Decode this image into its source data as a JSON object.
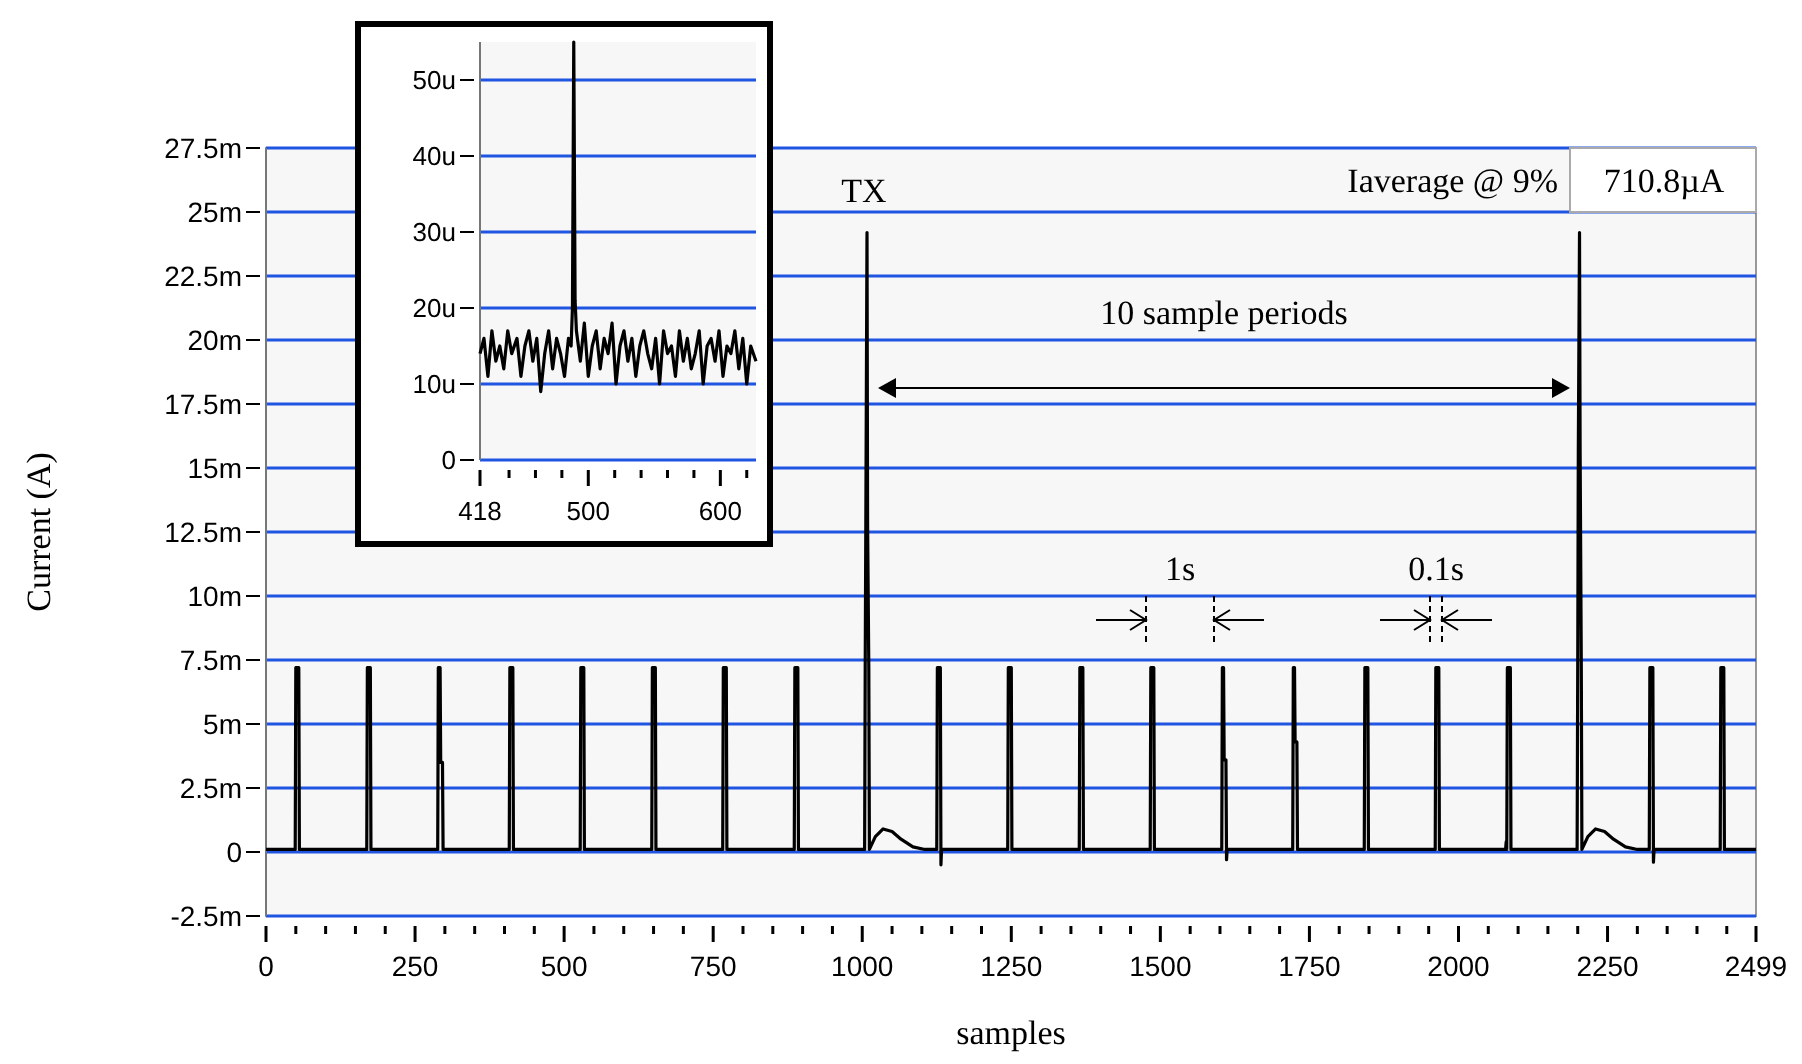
{
  "chart_data": [
    {
      "type": "line",
      "xlabel": "samples",
      "ylabel": "Current (A)",
      "xlim": [
        0,
        2499
      ],
      "ylim": [
        -2.5,
        27.5
      ],
      "xticks": [
        0,
        {
          "value": 50,
          "label": null
        },
        {
          "value": 100,
          "label": null
        },
        {
          "value": 150,
          "label": null
        },
        {
          "value": 200,
          "label": null
        },
        250,
        {
          "value": 300,
          "label": null
        },
        {
          "value": 350,
          "label": null
        },
        {
          "value": 400,
          "label": null
        },
        {
          "value": 450,
          "label": null
        },
        500,
        {
          "value": 550,
          "label": null
        },
        {
          "value": 600,
          "label": null
        },
        {
          "value": 650,
          "label": null
        },
        {
          "value": 700,
          "label": null
        },
        750,
        {
          "value": 800,
          "label": null
        },
        {
          "value": 850,
          "label": null
        },
        {
          "value": 900,
          "label": null
        },
        {
          "value": 950,
          "label": null
        },
        1000,
        {
          "value": 1050,
          "label": null
        },
        {
          "value": 1100,
          "label": null
        },
        {
          "value": 1150,
          "label": null
        },
        {
          "value": 1200,
          "label": null
        },
        1250,
        {
          "value": 1300,
          "label": null
        },
        {
          "value": 1350,
          "label": null
        },
        {
          "value": 1400,
          "label": null
        },
        {
          "value": 1450,
          "label": null
        },
        1500,
        {
          "value": 1550,
          "label": null
        },
        {
          "value": 1600,
          "label": null
        },
        {
          "value": 1650,
          "label": null
        },
        {
          "value": 1700,
          "label": null
        },
        1750,
        {
          "value": 1800,
          "label": null
        },
        {
          "value": 1850,
          "label": null
        },
        {
          "value": 1900,
          "label": null
        },
        {
          "value": 1950,
          "label": null
        },
        2000,
        {
          "value": 2050,
          "label": null
        },
        {
          "value": 2100,
          "label": null
        },
        {
          "value": 2150,
          "label": null
        },
        {
          "value": 2200,
          "label": null
        },
        2250,
        {
          "value": 2300,
          "label": null
        },
        {
          "value": 2350,
          "label": null
        },
        {
          "value": 2400,
          "label": null
        },
        {
          "value": 2450,
          "label": null
        },
        2499
      ],
      "yticks": [
        {
          "value": -2.5,
          "label": "-2.5m"
        },
        0,
        {
          "value": 2.5,
          "label": "2.5m"
        },
        {
          "value": 5,
          "label": "5m"
        },
        {
          "value": 7.5,
          "label": "7.5m"
        },
        {
          "value": 10,
          "label": "10m"
        },
        {
          "value": 12.5,
          "label": "12.5m"
        },
        {
          "value": 15,
          "label": "15m"
        },
        {
          "value": 17.5,
          "label": "17.5m"
        },
        {
          "value": 20,
          "label": "20m"
        },
        {
          "value": 22.5,
          "label": "22.5m"
        },
        {
          "value": 25,
          "label": "25m"
        },
        {
          "value": 27.5,
          "label": "27.5m"
        }
      ],
      "grid": "y",
      "marker": "none",
      "line_style": "solid",
      "series": [
        {
          "color": "#000000",
          "x": [
            0,
            49,
            50,
            55,
            56,
            169,
            170,
            175,
            176,
            288,
            289,
            292,
            293,
            296,
            297,
            408,
            409,
            414,
            415,
            527,
            528,
            533,
            534,
            647,
            648,
            653,
            654,
            766,
            767,
            772,
            773,
            886,
            887,
            892,
            893,
            1004,
            1005,
            1006,
            1008,
            1009,
            1011,
            1012,
            1022,
            1035,
            1050,
            1065,
            1085,
            1105,
            1125,
            1126,
            1131,
            1132,
            1133,
            1244,
            1245,
            1250,
            1251,
            1364,
            1365,
            1370,
            1371,
            1483,
            1484,
            1489,
            1490,
            1603,
            1604,
            1606,
            1607,
            1610,
            1611,
            1612,
            1722,
            1723,
            1725,
            1726,
            1729,
            1730,
            1842,
            1843,
            1848,
            1849,
            1961,
            1962,
            1967,
            1968,
            2079,
            2080,
            2081,
            2082,
            2087,
            2088,
            2199,
            2200,
            2201,
            2203,
            2204,
            2206,
            2207,
            2217,
            2230,
            2245,
            2260,
            2280,
            2300,
            2320,
            2321,
            2326,
            2327,
            2328,
            2439,
            2440,
            2445,
            2446,
            2499
          ],
          "values": [
            0.1,
            0.1,
            7.2,
            7.2,
            0.1,
            0.1,
            7.2,
            7.2,
            0.1,
            0.1,
            7.2,
            7.2,
            3.5,
            3.5,
            0.1,
            0.1,
            7.2,
            7.2,
            0.1,
            0.1,
            7.2,
            7.2,
            0.1,
            0.1,
            7.2,
            7.2,
            0.1,
            0.1,
            7.2,
            7.2,
            0.1,
            0.1,
            7.2,
            7.2,
            0.1,
            0.1,
            7.2,
            12.8,
            24.2,
            12.8,
            7.2,
            0.1,
            0.6,
            0.9,
            0.8,
            0.5,
            0.2,
            0.1,
            0.1,
            7.2,
            7.2,
            -0.5,
            0.1,
            0.1,
            7.2,
            7.2,
            0.1,
            0.1,
            7.2,
            7.2,
            0.1,
            0.1,
            7.2,
            7.2,
            0.1,
            0.1,
            7.2,
            7.2,
            3.6,
            3.6,
            -0.3,
            0.1,
            0.1,
            7.2,
            7.2,
            4.3,
            4.3,
            0.1,
            0.1,
            7.2,
            7.2,
            0.1,
            0.1,
            7.2,
            7.2,
            0.1,
            0.1,
            0.4,
            0.1,
            7.2,
            7.2,
            0.1,
            0.1,
            7.2,
            15.7,
            24.2,
            15.7,
            7.2,
            0.1,
            0.6,
            0.9,
            0.8,
            0.5,
            0.2,
            0.1,
            0.1,
            7.2,
            7.2,
            -0.4,
            0.1,
            0.1,
            7.2,
            7.2,
            0.1,
            0.1
          ]
        }
      ],
      "annotations": [
        "TX",
        "10 sample periods",
        "1s",
        "0.1s",
        "Iaverage @ 9%",
        "710.8µA"
      ]
    },
    {
      "type": "line",
      "xlim": [
        418,
        627
      ],
      "ylim": [
        0,
        55
      ],
      "xticks": [
        418,
        {
          "value": 440,
          "label": null
        },
        {
          "value": 460,
          "label": null
        },
        {
          "value": 480,
          "label": null
        },
        500,
        {
          "value": 520,
          "label": null
        },
        {
          "value": 540,
          "label": null
        },
        {
          "value": 560,
          "label": null
        },
        {
          "value": 580,
          "label": null
        },
        600,
        {
          "value": 620,
          "label": null
        }
      ],
      "yticks": [
        0,
        {
          "value": 10,
          "label": "10u"
        },
        {
          "value": 20,
          "label": "20u"
        },
        {
          "value": 30,
          "label": "30u"
        },
        {
          "value": 40,
          "label": "40u"
        },
        {
          "value": 50,
          "label": "50u"
        }
      ],
      "grid": "y",
      "marker": "none",
      "line_style": "solid",
      "series": [
        {
          "color": "#000000",
          "x": [
            418,
            421,
            424,
            427,
            430,
            433,
            436,
            439,
            442,
            446,
            449,
            452,
            455,
            458,
            461,
            464,
            467,
            470,
            473,
            476,
            479,
            482,
            485,
            487,
            488,
            489,
            490,
            491,
            494,
            497,
            500,
            503,
            506,
            509,
            512,
            515,
            518,
            521,
            524,
            527,
            530,
            533,
            536,
            539,
            542,
            545,
            548,
            551,
            554,
            557,
            560,
            563,
            566,
            569,
            572,
            575,
            578,
            581,
            584,
            587,
            590,
            593,
            596,
            599,
            602,
            605,
            608,
            611,
            614,
            617,
            620,
            623,
            627
          ],
          "values": [
            14,
            16,
            11,
            17,
            13,
            15,
            12,
            17,
            14,
            16,
            11,
            15,
            17,
            13,
            16,
            9,
            14,
            17,
            12,
            16,
            14,
            11,
            16,
            15,
            20,
            55,
            21,
            17,
            13,
            18,
            11,
            15,
            17,
            12,
            16,
            14,
            18,
            10,
            15,
            17,
            13,
            16,
            11,
            15,
            17,
            14,
            12,
            16,
            10,
            17,
            14,
            15,
            11,
            17,
            13,
            16,
            12,
            14,
            17,
            10,
            15,
            16,
            13,
            17,
            11,
            15,
            14,
            17,
            12,
            16,
            10,
            15,
            13
          ]
        }
      ]
    }
  ]
}
